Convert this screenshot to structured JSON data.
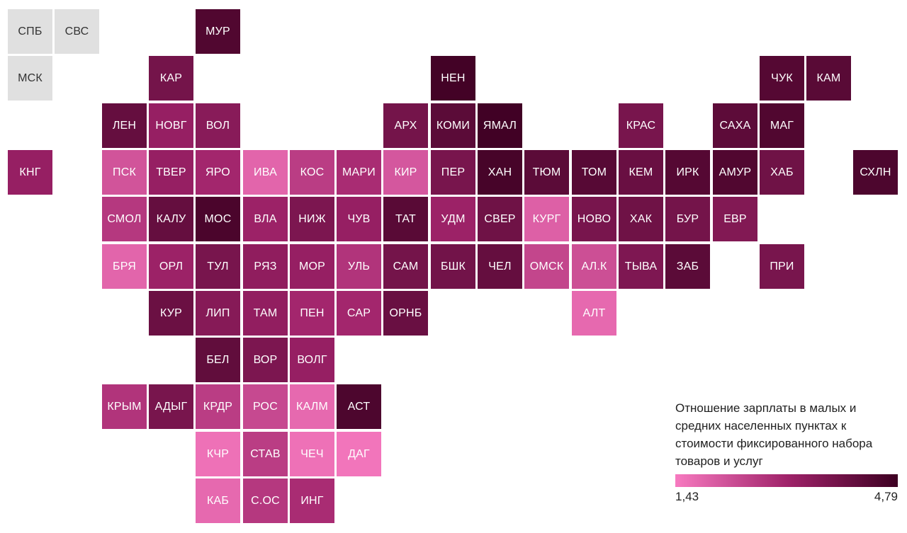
{
  "colors": {
    "low": "#f77ac0",
    "mid": "#a0236a",
    "high": "#3d0022",
    "no_data": "#e0e0e0"
  },
  "legend": {
    "title": "Отношение зарплаты в малых и средних населенных пунктах к стоимости фиксированного набора товаров и услуг",
    "min_label": "1,43",
    "max_label": "4,79"
  },
  "regions": [
    {
      "label": "СПБ",
      "col": 0,
      "row": 0,
      "level": null
    },
    {
      "label": "СВС",
      "col": 1,
      "row": 0,
      "level": null
    },
    {
      "label": "МУР",
      "col": 4,
      "row": 0,
      "level": 0.9
    },
    {
      "label": "МСК",
      "col": 0,
      "row": 1,
      "level": null
    },
    {
      "label": "КАР",
      "col": 3,
      "row": 1,
      "level": 0.72
    },
    {
      "label": "НЕН",
      "col": 9,
      "row": 1,
      "level": 0.97
    },
    {
      "label": "ЧУК",
      "col": 16,
      "row": 1,
      "level": 0.88
    },
    {
      "label": "КАМ",
      "col": 17,
      "row": 1,
      "level": 0.86
    },
    {
      "label": "ЛЕН",
      "col": 2,
      "row": 2,
      "level": 0.8
    },
    {
      "label": "НОВГ",
      "col": 3,
      "row": 2,
      "level": 0.55
    },
    {
      "label": "ВОЛ",
      "col": 4,
      "row": 2,
      "level": 0.62
    },
    {
      "label": "АРХ",
      "col": 8,
      "row": 2,
      "level": 0.72
    },
    {
      "label": "КОМИ",
      "col": 9,
      "row": 2,
      "level": 0.85
    },
    {
      "label": "ЯМАЛ",
      "col": 10,
      "row": 2,
      "level": 0.98
    },
    {
      "label": "КРАС",
      "col": 13,
      "row": 2,
      "level": 0.7
    },
    {
      "label": "САХА",
      "col": 15,
      "row": 2,
      "level": 0.84
    },
    {
      "label": "МАГ",
      "col": 16,
      "row": 2,
      "level": 0.9
    },
    {
      "label": "КНГ",
      "col": 0,
      "row": 3,
      "level": 0.55
    },
    {
      "label": "ПСК",
      "col": 2,
      "row": 3,
      "level": 0.22
    },
    {
      "label": "ТВЕР",
      "col": 3,
      "row": 3,
      "level": 0.55
    },
    {
      "label": "ЯРО",
      "col": 4,
      "row": 3,
      "level": 0.48
    },
    {
      "label": "ИВА",
      "col": 5,
      "row": 3,
      "level": 0.12
    },
    {
      "label": "КОС",
      "col": 6,
      "row": 3,
      "level": 0.35
    },
    {
      "label": "МАРИ",
      "col": 7,
      "row": 3,
      "level": 0.45
    },
    {
      "label": "КИР",
      "col": 8,
      "row": 3,
      "level": 0.2
    },
    {
      "label": "ПЕР",
      "col": 9,
      "row": 3,
      "level": 0.7
    },
    {
      "label": "ХАН",
      "col": 10,
      "row": 3,
      "level": 0.95
    },
    {
      "label": "ТЮМ",
      "col": 11,
      "row": 3,
      "level": 0.85
    },
    {
      "label": "ТОМ",
      "col": 12,
      "row": 3,
      "level": 0.87
    },
    {
      "label": "КЕМ",
      "col": 13,
      "row": 3,
      "level": 0.78
    },
    {
      "label": "ИРК",
      "col": 14,
      "row": 3,
      "level": 0.88
    },
    {
      "label": "АМУР",
      "col": 15,
      "row": 3,
      "level": 0.9
    },
    {
      "label": "ХАБ",
      "col": 16,
      "row": 3,
      "level": 0.75
    },
    {
      "label": "СХЛН",
      "col": 18,
      "row": 3,
      "level": 0.92
    },
    {
      "label": "СМОЛ",
      "col": 2,
      "row": 4,
      "level": 0.38
    },
    {
      "label": "КАЛУ",
      "col": 3,
      "row": 4,
      "level": 0.8
    },
    {
      "label": "МОС",
      "col": 4,
      "row": 4,
      "level": 0.93
    },
    {
      "label": "ВЛА",
      "col": 5,
      "row": 4,
      "level": 0.52
    },
    {
      "label": "НИЖ",
      "col": 6,
      "row": 4,
      "level": 0.68
    },
    {
      "label": "ЧУВ",
      "col": 7,
      "row": 4,
      "level": 0.55
    },
    {
      "label": "ТАТ",
      "col": 8,
      "row": 4,
      "level": 0.86
    },
    {
      "label": "УДМ",
      "col": 9,
      "row": 4,
      "level": 0.52
    },
    {
      "label": "СВЕР",
      "col": 10,
      "row": 4,
      "level": 0.75
    },
    {
      "label": "КУРГ",
      "col": 11,
      "row": 4,
      "level": 0.15
    },
    {
      "label": "НОВО",
      "col": 12,
      "row": 4,
      "level": 0.7
    },
    {
      "label": "ХАК",
      "col": 13,
      "row": 4,
      "level": 0.75
    },
    {
      "label": "БУР",
      "col": 14,
      "row": 4,
      "level": 0.72
    },
    {
      "label": "ЕВР",
      "col": 15,
      "row": 4,
      "level": 0.65
    },
    {
      "label": "БРЯ",
      "col": 2,
      "row": 5,
      "level": 0.12
    },
    {
      "label": "ОРЛ",
      "col": 3,
      "row": 5,
      "level": 0.52
    },
    {
      "label": "ТУЛ",
      "col": 4,
      "row": 5,
      "level": 0.7
    },
    {
      "label": "РЯЗ",
      "col": 5,
      "row": 5,
      "level": 0.58
    },
    {
      "label": "МОР",
      "col": 6,
      "row": 5,
      "level": 0.55
    },
    {
      "label": "УЛЬ",
      "col": 7,
      "row": 5,
      "level": 0.4
    },
    {
      "label": "САМ",
      "col": 8,
      "row": 5,
      "level": 0.72
    },
    {
      "label": "БШК",
      "col": 9,
      "row": 5,
      "level": 0.73
    },
    {
      "label": "ЧЕЛ",
      "col": 10,
      "row": 5,
      "level": 0.8
    },
    {
      "label": "ОМСК",
      "col": 11,
      "row": 5,
      "level": 0.3
    },
    {
      "label": "АЛ.К",
      "col": 12,
      "row": 5,
      "level": 0.25
    },
    {
      "label": "ТЫВА",
      "col": 13,
      "row": 5,
      "level": 0.67
    },
    {
      "label": "ЗАБ",
      "col": 14,
      "row": 5,
      "level": 0.85
    },
    {
      "label": "ПРИ",
      "col": 16,
      "row": 5,
      "level": 0.7
    },
    {
      "label": "КУР",
      "col": 3,
      "row": 6,
      "level": 0.77
    },
    {
      "label": "ЛИП",
      "col": 4,
      "row": 6,
      "level": 0.63
    },
    {
      "label": "ТАМ",
      "col": 5,
      "row": 6,
      "level": 0.57
    },
    {
      "label": "ПЕН",
      "col": 6,
      "row": 6,
      "level": 0.48
    },
    {
      "label": "САР",
      "col": 7,
      "row": 6,
      "level": 0.48
    },
    {
      "label": "ОРНБ",
      "col": 8,
      "row": 6,
      "level": 0.78
    },
    {
      "label": "АЛТ",
      "col": 12,
      "row": 6,
      "level": 0.1
    },
    {
      "label": "БЕЛ",
      "col": 4,
      "row": 7,
      "level": 0.82
    },
    {
      "label": "ВОР",
      "col": 5,
      "row": 7,
      "level": 0.68
    },
    {
      "label": "ВОЛГ",
      "col": 6,
      "row": 7,
      "level": 0.55
    },
    {
      "label": "КРЫМ",
      "col": 2,
      "row": 8,
      "level": 0.4
    },
    {
      "label": "АДЫГ",
      "col": 3,
      "row": 8,
      "level": 0.7
    },
    {
      "label": "КРДР",
      "col": 4,
      "row": 8,
      "level": 0.35
    },
    {
      "label": "РОС",
      "col": 5,
      "row": 8,
      "level": 0.28
    },
    {
      "label": "КАЛМ",
      "col": 6,
      "row": 8,
      "level": 0.1
    },
    {
      "label": "АСТ",
      "col": 7,
      "row": 8,
      "level": 0.92
    },
    {
      "label": "КЧР",
      "col": 4,
      "row": 9,
      "level": 0.05
    },
    {
      "label": "СТАВ",
      "col": 5,
      "row": 9,
      "level": 0.35
    },
    {
      "label": "ЧЕЧ",
      "col": 6,
      "row": 9,
      "level": 0.05
    },
    {
      "label": "ДАГ",
      "col": 7,
      "row": 9,
      "level": 0.03
    },
    {
      "label": "КАБ",
      "col": 4,
      "row": 10,
      "level": 0.1
    },
    {
      "label": "С.ОС",
      "col": 5,
      "row": 10,
      "level": 0.38
    },
    {
      "label": "ИНГ",
      "col": 6,
      "row": 10,
      "level": 0.45
    }
  ]
}
